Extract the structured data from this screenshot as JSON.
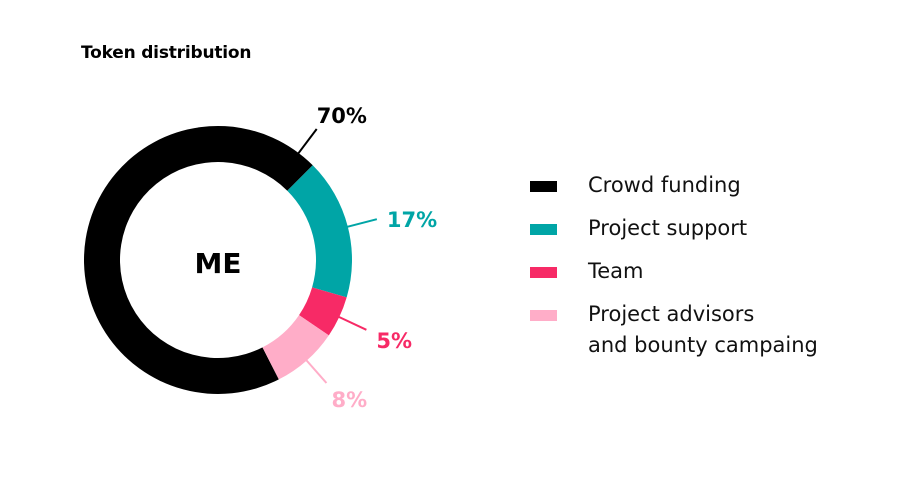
{
  "header": {
    "title": "Token distribution"
  },
  "chart_data": {
    "type": "pie",
    "donut": true,
    "center_label": "ME",
    "categories": [
      "Crowd funding",
      "Project support",
      "Team",
      "Project advisors and bounty campaing"
    ],
    "values": [
      70,
      17,
      5,
      8
    ],
    "data_labels": [
      "70%",
      "17%",
      "5%",
      "8%"
    ],
    "colors": [
      "#000000",
      "#00a5a6",
      "#f72a66",
      "#ffadc8"
    ],
    "legend_placement": "right"
  },
  "legend": {
    "items": [
      {
        "label_lines": [
          "Crowd funding"
        ],
        "color": "#000000"
      },
      {
        "label_lines": [
          "Project support"
        ],
        "color": "#00a5a6"
      },
      {
        "label_lines": [
          "Team"
        ],
        "color": "#f72a66"
      },
      {
        "label_lines": [
          "Project advisors",
          "and bounty campaing"
        ],
        "color": "#ffadc8"
      }
    ]
  }
}
